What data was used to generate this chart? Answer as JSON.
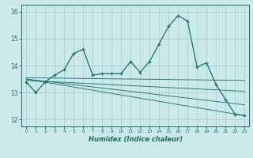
{
  "xlabel": "Humidex (Indice chaleur)",
  "background_color": "#cce9e9",
  "grid_color": "#aad4d4",
  "line_color": "#1a6e6e",
  "xlim": [
    -0.5,
    23.5
  ],
  "ylim": [
    11.75,
    16.25
  ],
  "yticks": [
    12,
    13,
    14,
    15,
    16
  ],
  "xticks": [
    0,
    1,
    2,
    3,
    4,
    5,
    6,
    7,
    8,
    9,
    10,
    11,
    12,
    13,
    14,
    15,
    16,
    17,
    18,
    19,
    20,
    21,
    22,
    23
  ],
  "main_series": [
    [
      0,
      13.4
    ],
    [
      1,
      13.0
    ],
    [
      2,
      13.4
    ],
    [
      3,
      13.65
    ],
    [
      4,
      13.85
    ],
    [
      5,
      14.45
    ],
    [
      6,
      14.6
    ],
    [
      7,
      13.65
    ],
    [
      8,
      13.7
    ],
    [
      9,
      13.7
    ],
    [
      10,
      13.7
    ],
    [
      11,
      14.15
    ],
    [
      12,
      13.75
    ],
    [
      13,
      14.15
    ],
    [
      14,
      14.8
    ],
    [
      15,
      15.45
    ],
    [
      16,
      15.85
    ],
    [
      17,
      15.65
    ],
    [
      18,
      13.95
    ],
    [
      19,
      14.1
    ],
    [
      20,
      13.3
    ],
    [
      21,
      12.75
    ],
    [
      22,
      12.2
    ],
    [
      23,
      12.15
    ]
  ],
  "trend_lines": [
    {
      "x": [
        0,
        23
      ],
      "y": [
        13.55,
        13.45
      ]
    },
    {
      "x": [
        0,
        23
      ],
      "y": [
        13.45,
        13.05
      ]
    },
    {
      "x": [
        0,
        23
      ],
      "y": [
        13.5,
        12.55
      ]
    },
    {
      "x": [
        0,
        23
      ],
      "y": [
        13.5,
        12.15
      ]
    }
  ]
}
